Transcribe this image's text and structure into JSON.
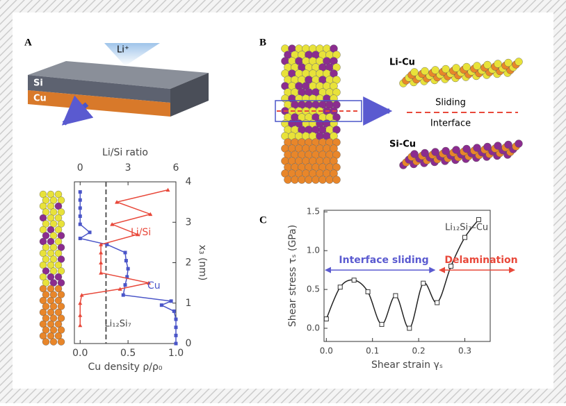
{
  "figure": {
    "panel_a": {
      "label": "A",
      "ion": "Li⁺",
      "layer_top": "Si",
      "layer_bottom": "Cu"
    },
    "panel_b": {
      "label": "B",
      "top_pair": "Li-Cu",
      "line1": "Sliding",
      "line2": "Interface",
      "bottom_pair": "Si-Cu"
    },
    "panel_c": {
      "label": "C"
    }
  },
  "chart_data": [
    {
      "type": "profile",
      "xlabel": "Cu density ρ/ρ₀",
      "x2label": "Li/Si ratio",
      "ylabel": "x₃ (nm)",
      "xlim": [
        -0.06,
        1.0
      ],
      "xticks": [
        {
          "value": 0,
          "label": "0.0"
        },
        {
          "value": 0.5,
          "label": "0.5"
        },
        {
          "value": 1,
          "label": "1.0"
        }
      ],
      "x2lim": [
        -0.36,
        6
      ],
      "x2ticks": [
        0,
        3,
        6
      ],
      "ylim": [
        0,
        4
      ],
      "yticks": [
        0,
        1,
        2,
        3,
        4
      ],
      "reference": {
        "value": 0.27,
        "label": "Li₁₂Si₇"
      },
      "series": [
        {
          "name": "Cu",
          "color": "#4a55c8",
          "axis": "x",
          "y": [
            0,
            0.2,
            0.4,
            0.6,
            0.8,
            0.95,
            1.05,
            1.2,
            1.45,
            1.65,
            1.85,
            2.05,
            2.25,
            2.45,
            2.6,
            2.75,
            2.95,
            3.15,
            3.35,
            3.55,
            3.75
          ],
          "values": [
            1,
            1,
            1,
            1,
            0.98,
            0.85,
            0.95,
            0.45,
            0.47,
            0.49,
            0.5,
            0.48,
            0.47,
            0.28,
            0,
            0.1,
            0,
            0,
            0,
            0,
            0
          ]
        },
        {
          "name": "Li/Si",
          "color": "#e8483a",
          "axis": "x2",
          "y": [
            0.45,
            0.7,
            1.0,
            1.2,
            1.35,
            1.5,
            1.75,
            2.0,
            2.25,
            2.45,
            2.7,
            2.95,
            3.2,
            3.5,
            3.8
          ],
          "values": [
            0,
            0,
            0,
            0.1,
            2.5,
            4.3,
            1.3,
            1.3,
            1.3,
            1.3,
            3.6,
            2.0,
            4.4,
            2.3,
            5.5
          ]
        }
      ]
    },
    {
      "type": "line",
      "xlabel": "Shear strain γₛ",
      "ylabel": "Shear stress τₛ (GPa)",
      "xlim": [
        -0.005,
        0.355
      ],
      "xticks": [
        {
          "value": 0,
          "label": "0.0"
        },
        0.1,
        0.2,
        0.3
      ],
      "ylim": [
        -0.17,
        1.52
      ],
      "yticks": [
        {
          "value": 0,
          "label": "0.0"
        },
        0.5,
        {
          "value": 1,
          "label": "1.0"
        },
        1.5
      ],
      "annotations": {
        "material": "Li₁₂Si₇–Cu",
        "sliding": "Interface sliding",
        "delamination": "Delamination"
      },
      "x": [
        0,
        0.03,
        0.06,
        0.09,
        0.12,
        0.15,
        0.18,
        0.21,
        0.24,
        0.27,
        0.3,
        0.33
      ],
      "values": [
        0.12,
        0.53,
        0.62,
        0.47,
        0.05,
        0.42,
        0.0,
        0.58,
        0.33,
        0.8,
        1.17,
        1.4
      ],
      "color": "#222"
    }
  ]
}
